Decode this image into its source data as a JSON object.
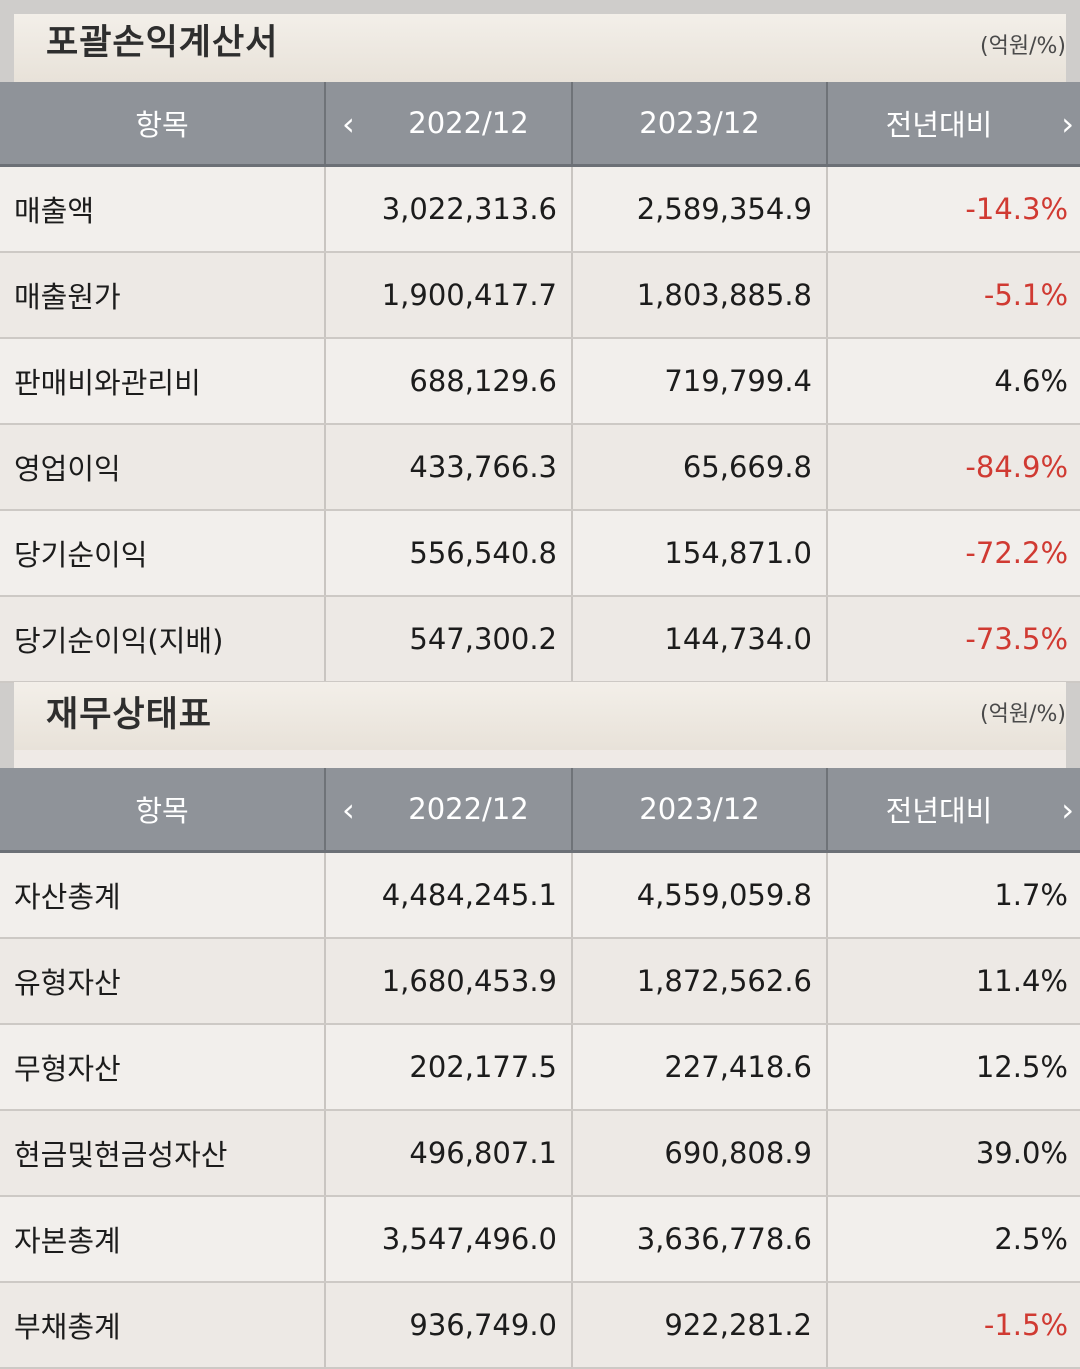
{
  "income": {
    "title": "포괄손익계산서",
    "unit": "(억원/%)",
    "headers": {
      "item": "항목",
      "prev": "2022/12",
      "curr": "2023/12",
      "yoy": "전년대비"
    },
    "rows": [
      {
        "label": "매출액",
        "prev": "3,022,313.6",
        "curr": "2,589,354.9",
        "yoy": "-14.3%"
      },
      {
        "label": "매출원가",
        "prev": "1,900,417.7",
        "curr": "1,803,885.8",
        "yoy": "-5.1%"
      },
      {
        "label": "판매비와관리비",
        "prev": "688,129.6",
        "curr": "719,799.4",
        "yoy": "4.6%"
      },
      {
        "label": "영업이익",
        "prev": "433,766.3",
        "curr": "65,669.8",
        "yoy": "-84.9%"
      },
      {
        "label": "당기순이익",
        "prev": "556,540.8",
        "curr": "154,871.0",
        "yoy": "-72.2%"
      },
      {
        "label": "당기순이익(지배)",
        "prev": "547,300.2",
        "curr": "144,734.0",
        "yoy": "-73.5%"
      }
    ]
  },
  "balance": {
    "title": "재무상태표",
    "unit": "(억원/%)",
    "headers": {
      "item": "항목",
      "prev": "2022/12",
      "curr": "2023/12",
      "yoy": "전년대비"
    },
    "rows": [
      {
        "label": "자산총계",
        "prev": "4,484,245.1",
        "curr": "4,559,059.8",
        "yoy": "1.7%"
      },
      {
        "label": "유형자산",
        "prev": "1,680,453.9",
        "curr": "1,872,562.6",
        "yoy": "11.4%"
      },
      {
        "label": "무형자산",
        "prev": "202,177.5",
        "curr": "227,418.6",
        "yoy": "12.5%"
      },
      {
        "label": "현금및현금성자산",
        "prev": "496,807.1",
        "curr": "690,808.9",
        "yoy": "39.0%"
      },
      {
        "label": "자본총계",
        "prev": "3,547,496.0",
        "curr": "3,636,778.6",
        "yoy": "2.5%"
      },
      {
        "label": "부채총계",
        "prev": "936,749.0",
        "curr": "922,281.2",
        "yoy": "-1.5%"
      }
    ]
  },
  "icons": {
    "prev": "chevron-left-icon",
    "next": "chevron-right-icon"
  },
  "colors": {
    "negative": "#d03a32",
    "header_bg": "#8f9399"
  }
}
